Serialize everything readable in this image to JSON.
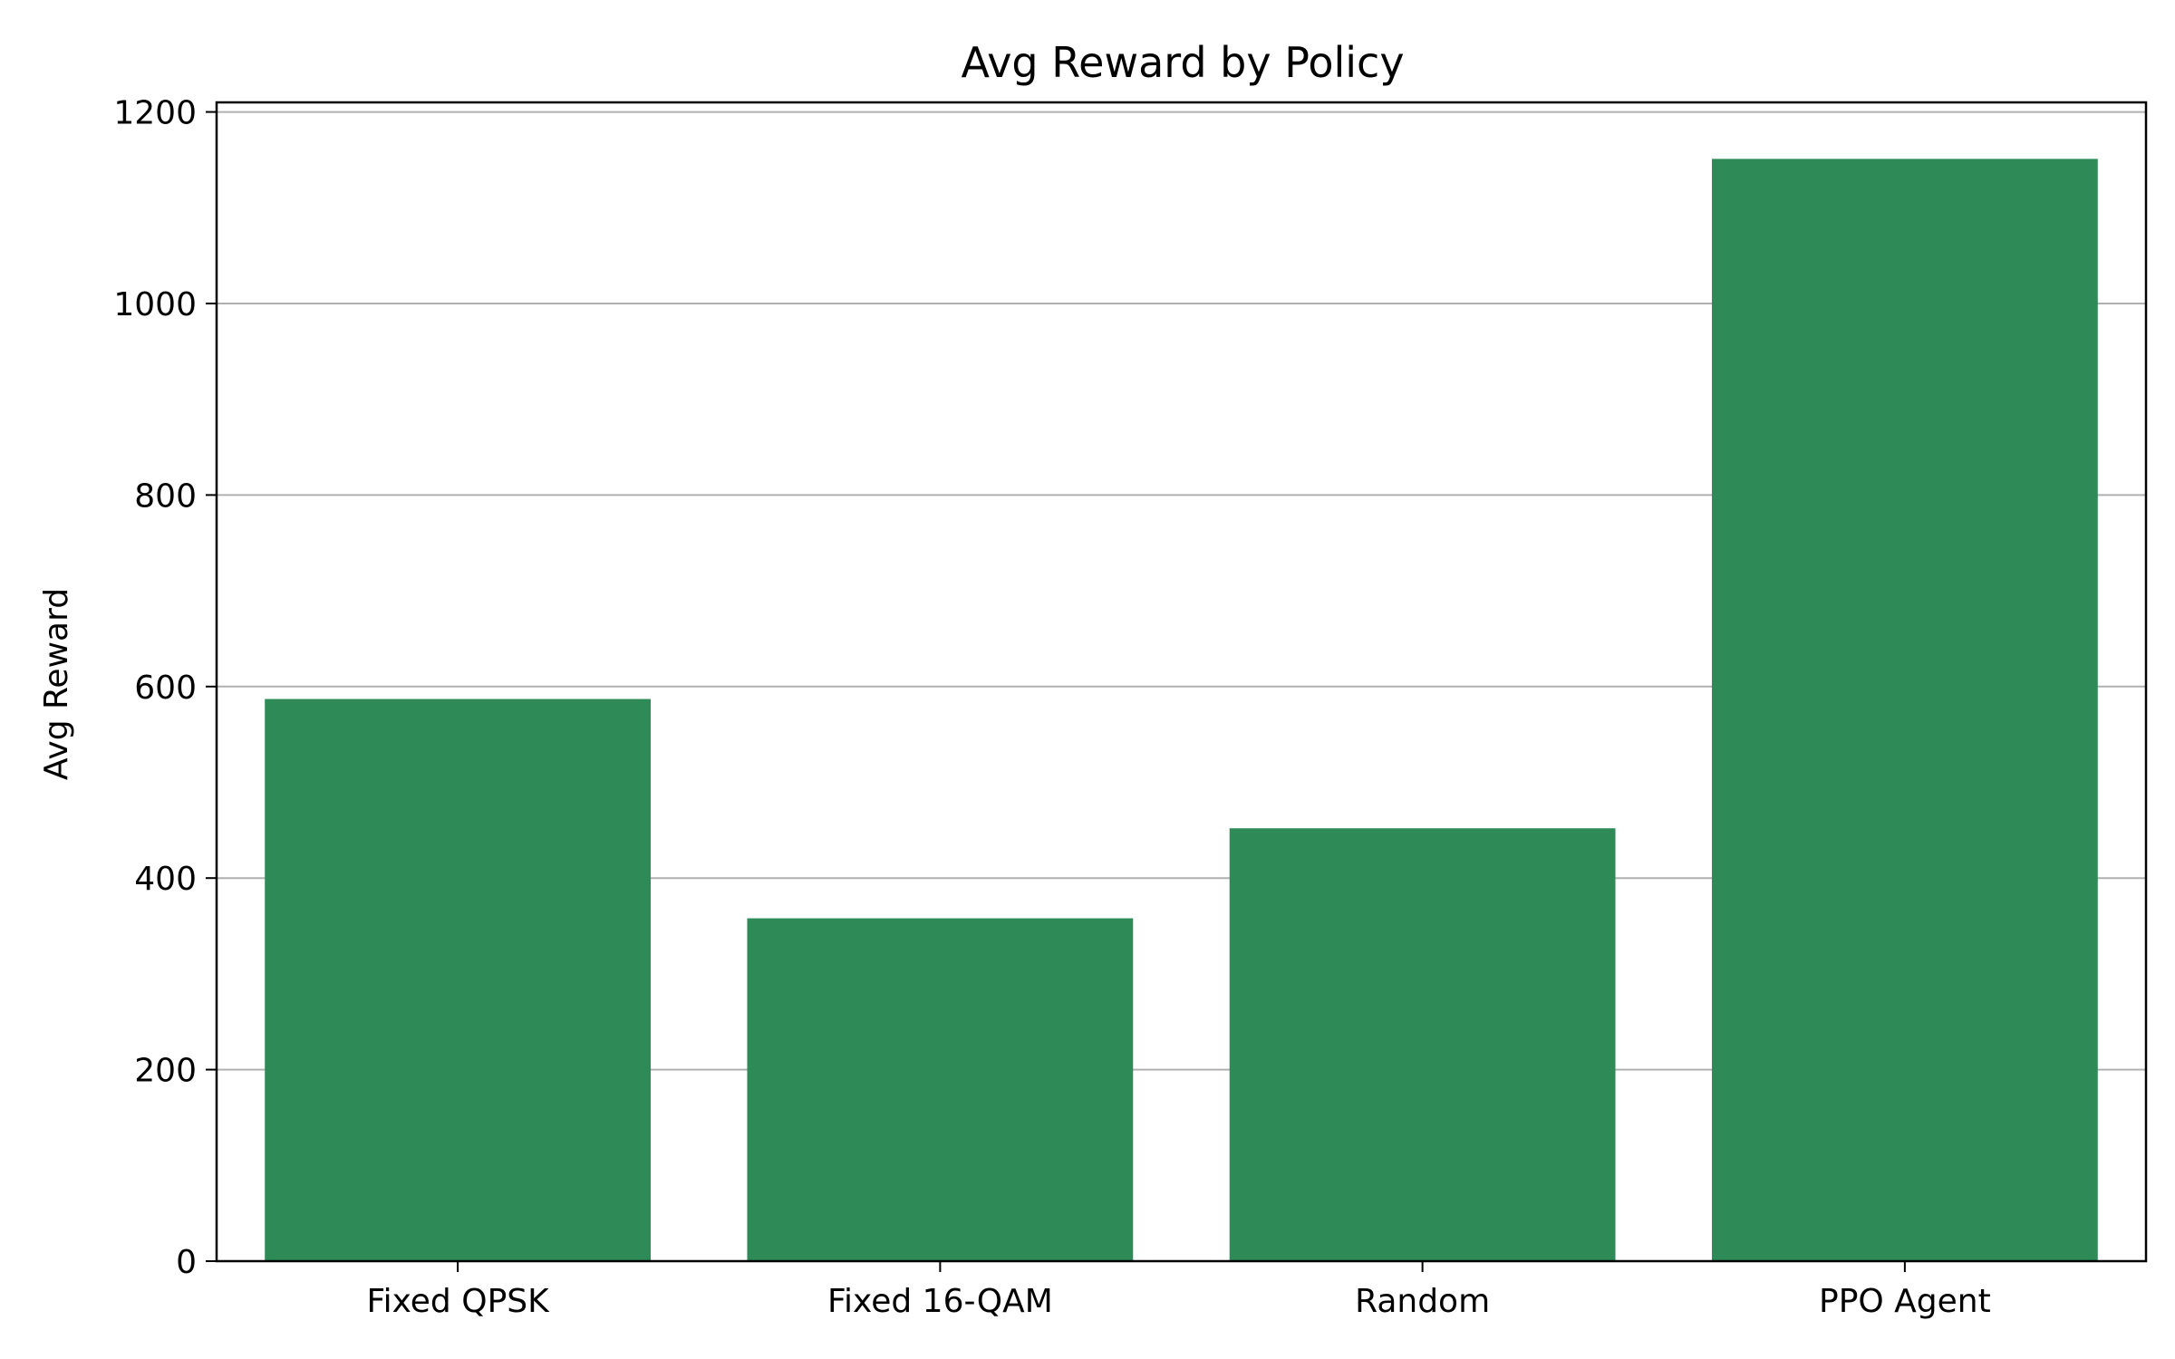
{
  "chart_data": {
    "type": "bar",
    "title": "Avg Reward by Policy",
    "xlabel": "",
    "ylabel": "Avg Reward",
    "categories": [
      "Fixed QPSK",
      "Fixed 16-QAM",
      "Random",
      "PPO Agent"
    ],
    "values": [
      587,
      358,
      452,
      1151
    ],
    "ylim": [
      0,
      1210
    ],
    "yticks": [
      0,
      200,
      400,
      600,
      800,
      1000,
      1200
    ],
    "grid": "y",
    "legend": "none",
    "colors": {
      "bar": "#2e8b57",
      "grid": "#b0b0b0",
      "axis": "#000000"
    }
  }
}
